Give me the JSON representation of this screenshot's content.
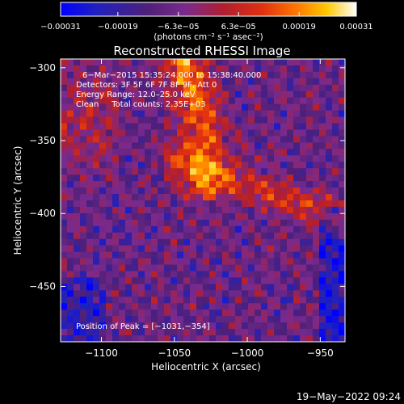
{
  "chart_data": {
    "type": "heatmap",
    "title": "Reconstructed RHESSI Image",
    "xlabel": "Heliocentric X (arcsec)",
    "ylabel": "Heliocentric Y (arcsec)",
    "xlim": [
      -1128,
      -933
    ],
    "ylim": [
      -488,
      -294
    ],
    "x_ticks": [
      {
        "v": -1100,
        "label": "−1100"
      },
      {
        "v": -1050,
        "label": "−1050"
      },
      {
        "v": -1000,
        "label": "−1000"
      },
      {
        "v": -950,
        "label": "−950"
      }
    ],
    "y_ticks": [
      {
        "v": -300,
        "label": "−300"
      },
      {
        "v": -350,
        "label": "−350"
      },
      {
        "v": -400,
        "label": "−400"
      },
      {
        "v": -450,
        "label": "−450"
      }
    ],
    "colorbar": {
      "min": -0.00031,
      "max": 0.00031,
      "ticks": [
        {
          "v": -0.00031,
          "label": "−0.00031"
        },
        {
          "v": -0.00019,
          "label": "−0.00019"
        },
        {
          "v": -6.3e-05,
          "label": "−6.3e−05"
        },
        {
          "v": 6.3e-05,
          "label": "6.3e−05"
        },
        {
          "v": 0.00019,
          "label": "0.00019"
        },
        {
          "v": 0.00031,
          "label": "0.00031"
        }
      ],
      "unit_label": "(photons cm⁻² s⁻¹ asec⁻²)",
      "colors": [
        "#0000ff",
        "#2020c0",
        "#502078",
        "#7a2a8e",
        "#b01e30",
        "#e03010",
        "#ff7800",
        "#ffc800",
        "#ffffff"
      ]
    },
    "annotations": [
      "6−Mar−2015 15:35:24.000 to 15:38:40.000",
      "Detectors: 3F 5F 6F 7F 8F 9F, Att 0",
      "Energy Range: 12.0–25.0 keV",
      "Clean     Total counts: 2.35E+03"
    ],
    "peak_label": "Position of Peak = [−1031,−354]",
    "peak": [
      -1031,
      -354
    ]
  },
  "footer": {
    "timestamp": "19−May−2022 09:24"
  }
}
